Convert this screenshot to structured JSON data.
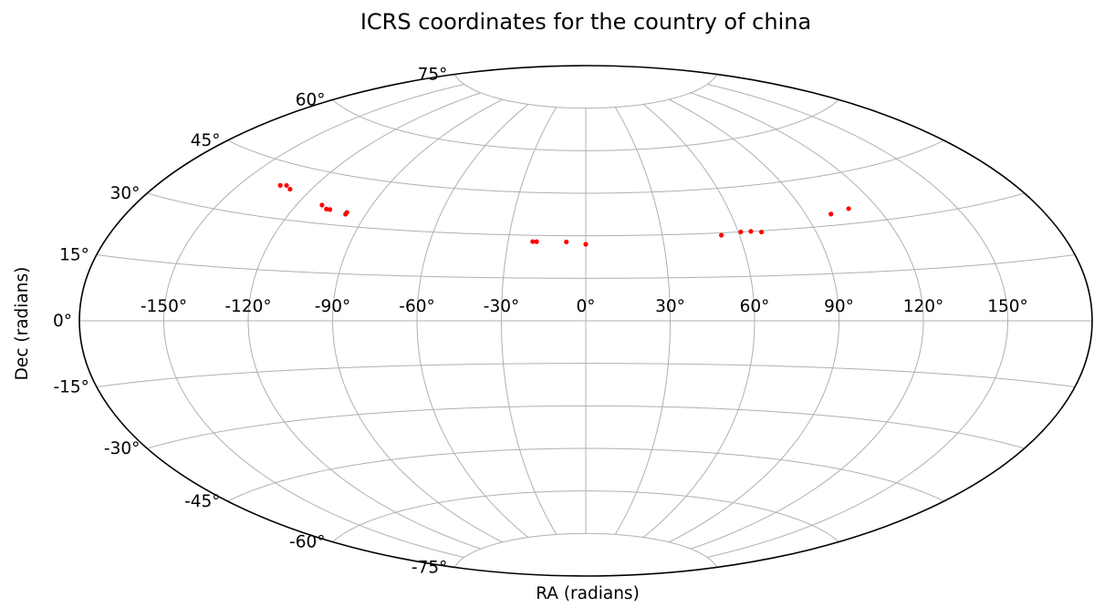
{
  "chart_data": {
    "type": "scatter",
    "projection": "aitoff",
    "title": "ICRS coordinates for the country of china",
    "xlabel": "RA (radians)",
    "ylabel": "Dec (radians)",
    "x_ticks": [
      "-150°",
      "-120°",
      "-90°",
      "-60°",
      "-30°",
      "0°",
      "30°",
      "60°",
      "90°",
      "120°",
      "150°"
    ],
    "y_ticks_left": [
      "75°",
      "60°",
      "45°",
      "30°",
      "15°",
      "0°",
      "-15°",
      "-30°",
      "-45°",
      "-60°",
      "-75°"
    ],
    "grid": true,
    "series": [
      {
        "color": "#ff0000",
        "points": [
          {
            "ra": -134,
            "dec": 39
          },
          {
            "ra": -131.5,
            "dec": 39.3
          },
          {
            "ra": -128.5,
            "dec": 38.5
          },
          {
            "ra": -110,
            "dec": 35.5
          },
          {
            "ra": -107,
            "dec": 34.5
          },
          {
            "ra": -105.5,
            "dec": 34.5
          },
          {
            "ra": -98,
            "dec": 34.2
          },
          {
            "ra": -98,
            "dec": 33.6
          },
          {
            "ra": -20.5,
            "dec": 27.8
          },
          {
            "ra": -19,
            "dec": 27.8
          },
          {
            "ra": -7.5,
            "dec": 27.8
          },
          {
            "ra": 0,
            "dec": 27.0
          },
          {
            "ra": 53,
            "dec": 29.2
          },
          {
            "ra": 61,
            "dec": 30.0
          },
          {
            "ra": 65,
            "dec": 30.0
          },
          {
            "ra": 69,
            "dec": 29.6
          },
          {
            "ra": 100,
            "dec": 33.5
          },
          {
            "ra": 108.5,
            "dec": 34.5
          }
        ]
      }
    ]
  }
}
